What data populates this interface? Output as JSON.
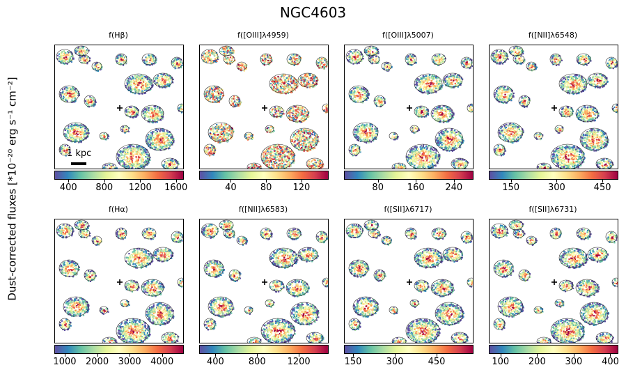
{
  "chart_data": {
    "type": "heatmap",
    "title": "NGC4603",
    "ylabel": "Dust-corrected fluxes [*10⁻²⁰ erg s⁻¹ cm⁻²]",
    "colormap": "Spectral_r",
    "scale_bar_label": "1 kpc",
    "panels": [
      {
        "title": "f(Hβ)",
        "ticks": [
          400,
          800,
          1200,
          1600
        ],
        "range": [
          250,
          1680
        ]
      },
      {
        "title": "f([OIII]λ4959)",
        "ticks": [
          40,
          80,
          120
        ],
        "range": [
          5,
          150
        ]
      },
      {
        "title": "f([OIII]λ5007)",
        "ticks": [
          80,
          160,
          240
        ],
        "range": [
          10,
          280
        ]
      },
      {
        "title": "f([NII]λ6548)",
        "ticks": [
          150,
          300,
          450
        ],
        "range": [
          80,
          500
        ]
      },
      {
        "title": "f(Hα)",
        "ticks": [
          1000,
          2000,
          3000,
          4000
        ],
        "range": [
          700,
          4650
        ]
      },
      {
        "title": "f([NII]λ6583)",
        "ticks": [
          400,
          800,
          1200
        ],
        "range": [
          250,
          1480
        ]
      },
      {
        "title": "f([SII]λ6717)",
        "ticks": [
          150,
          300,
          450
        ],
        "range": [
          120,
          580
        ]
      },
      {
        "title": "f([SII]λ6731)",
        "ticks": [
          100,
          200,
          300,
          400
        ],
        "range": [
          70,
          420
        ]
      }
    ]
  },
  "colors": {
    "low": "#5e4fa2",
    "mid": "#ffffbf",
    "high": "#9e0142"
  }
}
